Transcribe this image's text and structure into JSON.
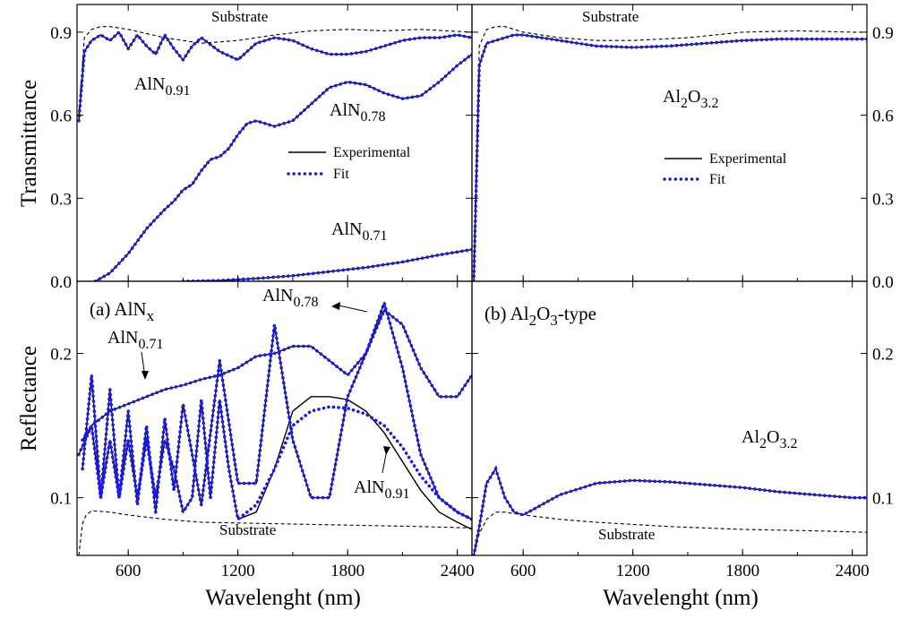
{
  "labels": {
    "ylabel_top": "Transmittance",
    "ylabel_bottom": "Reflectance",
    "xlabel_left": "Wavelenght (nm)",
    "xlabel_right": "Wavelenght (nm)",
    "panel_a": {
      "main": "(a) AlN",
      "sub": "x"
    },
    "panel_b": {
      "pre": "(b) Al",
      "sub1": "2",
      "mid": "O",
      "sub2": "3",
      "post": "-type"
    },
    "substrate": "Substrate",
    "aln091": {
      "main": "AlN",
      "sub": "0.91"
    },
    "aln078": {
      "main": "AlN",
      "sub": "0.78"
    },
    "aln071": {
      "main": "AlN",
      "sub": "0.71"
    },
    "al2o3": {
      "a": "Al",
      "s1": "2",
      "b": "O",
      "s2": "3.2"
    }
  },
  "legend": {
    "experimental": "Experimental",
    "fit": "Fit"
  },
  "colors": {
    "experimental": "#000000",
    "fit": "#1a1aee",
    "substrate": "#000000"
  },
  "ticks": {
    "x": [
      "600",
      "1200",
      "1800",
      "2400"
    ],
    "trans_y": [
      "0.0",
      "0.3",
      "0.6",
      "0.9"
    ],
    "refl_y": [
      "0.1",
      "0.2"
    ]
  },
  "chart_data": [
    {
      "panel": "transmittance-left",
      "type": "line",
      "ylabel": "Transmittance",
      "xlim": [
        320,
        2480
      ],
      "ylim": [
        0.0,
        1.0
      ],
      "series": [
        {
          "name": "Substrate",
          "style": "dashed",
          "x": [
            330,
            360,
            400,
            450,
            500,
            600,
            800,
            1000,
            1200,
            1400,
            1600,
            1800,
            2000,
            2200,
            2480
          ],
          "y": [
            0.6,
            0.88,
            0.91,
            0.92,
            0.92,
            0.91,
            0.88,
            0.86,
            0.87,
            0.89,
            0.905,
            0.91,
            0.905,
            0.91,
            0.9
          ]
        },
        {
          "name": "AlN0.91 Experimental",
          "x": [
            330,
            360,
            400,
            450,
            500,
            550,
            600,
            650,
            700,
            750,
            800,
            850,
            900,
            950,
            1000,
            1100,
            1200,
            1300,
            1400,
            1500,
            1600,
            1700,
            1800,
            1900,
            2000,
            2100,
            2200,
            2300,
            2400,
            2480
          ],
          "y": [
            0.58,
            0.83,
            0.87,
            0.89,
            0.87,
            0.9,
            0.84,
            0.89,
            0.85,
            0.82,
            0.89,
            0.84,
            0.8,
            0.85,
            0.88,
            0.83,
            0.8,
            0.86,
            0.88,
            0.87,
            0.84,
            0.82,
            0.82,
            0.83,
            0.85,
            0.87,
            0.88,
            0.88,
            0.89,
            0.88
          ]
        },
        {
          "name": "AlN0.91 Fit",
          "style": "dotted",
          "x": [
            330,
            360,
            400,
            450,
            500,
            550,
            600,
            650,
            700,
            750,
            800,
            850,
            900,
            950,
            1000,
            1100,
            1200,
            1300,
            1400,
            1500,
            1600,
            1700,
            1800,
            1900,
            2000,
            2100,
            2200,
            2300,
            2400,
            2480
          ],
          "y": [
            0.58,
            0.83,
            0.87,
            0.89,
            0.87,
            0.9,
            0.84,
            0.89,
            0.85,
            0.82,
            0.89,
            0.84,
            0.8,
            0.85,
            0.88,
            0.83,
            0.8,
            0.86,
            0.88,
            0.87,
            0.84,
            0.82,
            0.82,
            0.83,
            0.85,
            0.87,
            0.88,
            0.88,
            0.89,
            0.88
          ]
        },
        {
          "name": "AlN0.78 Experimental",
          "x": [
            420,
            500,
            600,
            700,
            800,
            850,
            900,
            950,
            1000,
            1050,
            1100,
            1150,
            1200,
            1250,
            1300,
            1400,
            1500,
            1600,
            1700,
            1800,
            1900,
            2000,
            2100,
            2200,
            2300,
            2400,
            2480
          ],
          "y": [
            0.0,
            0.03,
            0.1,
            0.19,
            0.26,
            0.29,
            0.33,
            0.35,
            0.4,
            0.44,
            0.45,
            0.48,
            0.53,
            0.57,
            0.58,
            0.56,
            0.58,
            0.64,
            0.7,
            0.72,
            0.71,
            0.68,
            0.66,
            0.67,
            0.72,
            0.78,
            0.82
          ]
        },
        {
          "name": "AlN0.78 Fit",
          "style": "dotted",
          "x": [
            420,
            500,
            600,
            700,
            800,
            850,
            900,
            950,
            1000,
            1050,
            1100,
            1150,
            1200,
            1250,
            1300,
            1400,
            1500,
            1600,
            1700,
            1800,
            1900,
            2000,
            2100,
            2200,
            2300,
            2400,
            2480
          ],
          "y": [
            0.0,
            0.03,
            0.1,
            0.19,
            0.26,
            0.29,
            0.33,
            0.35,
            0.4,
            0.44,
            0.45,
            0.48,
            0.53,
            0.57,
            0.58,
            0.56,
            0.58,
            0.64,
            0.7,
            0.72,
            0.71,
            0.68,
            0.66,
            0.67,
            0.72,
            0.78,
            0.82
          ]
        },
        {
          "name": "AlN0.71 Experimental",
          "x": [
            900,
            1100,
            1300,
            1500,
            1700,
            1900,
            2100,
            2300,
            2480
          ],
          "y": [
            0.0,
            0.003,
            0.01,
            0.02,
            0.035,
            0.05,
            0.07,
            0.095,
            0.115
          ]
        },
        {
          "name": "AlN0.71 Fit",
          "style": "dotted",
          "x": [
            900,
            1100,
            1300,
            1500,
            1700,
            1900,
            2100,
            2300,
            2480
          ],
          "y": [
            0.0,
            0.003,
            0.01,
            0.02,
            0.035,
            0.05,
            0.07,
            0.095,
            0.115
          ]
        }
      ]
    },
    {
      "panel": "transmittance-right",
      "type": "line",
      "ylabel": "Transmittance",
      "xlim": [
        320,
        2480
      ],
      "ylim": [
        0.0,
        1.0
      ],
      "series": [
        {
          "name": "Substrate",
          "style": "dashed",
          "x": [
            330,
            360,
            400,
            450,
            500,
            600,
            800,
            1000,
            1200,
            1500,
            1800,
            2100,
            2400,
            2480
          ],
          "y": [
            0.05,
            0.85,
            0.91,
            0.92,
            0.92,
            0.9,
            0.88,
            0.87,
            0.87,
            0.88,
            0.9,
            0.905,
            0.9,
            0.9
          ]
        },
        {
          "name": "Al2O3.2 Experimental",
          "x": [
            330,
            360,
            400,
            450,
            500,
            550,
            600,
            700,
            800,
            1000,
            1200,
            1400,
            1600,
            1800,
            2000,
            2200,
            2400,
            2480
          ],
          "y": [
            0.0,
            0.78,
            0.86,
            0.87,
            0.88,
            0.89,
            0.89,
            0.88,
            0.87,
            0.85,
            0.845,
            0.85,
            0.86,
            0.87,
            0.875,
            0.875,
            0.875,
            0.875
          ]
        },
        {
          "name": "Al2O3.2 Fit",
          "style": "dotted",
          "x": [
            330,
            360,
            400,
            450,
            500,
            550,
            600,
            700,
            800,
            1000,
            1200,
            1400,
            1600,
            1800,
            2000,
            2200,
            2400,
            2480
          ],
          "y": [
            0.0,
            0.78,
            0.86,
            0.87,
            0.88,
            0.89,
            0.89,
            0.88,
            0.87,
            0.85,
            0.845,
            0.85,
            0.86,
            0.87,
            0.875,
            0.875,
            0.875,
            0.875
          ]
        }
      ]
    },
    {
      "panel": "reflectance-left",
      "type": "line",
      "ylabel": "Reflectance",
      "xlabel": "Wavelenght (nm)",
      "xlim": [
        320,
        2480
      ],
      "ylim": [
        0.06,
        0.25
      ],
      "series": [
        {
          "name": "Substrate",
          "style": "dashed",
          "x": [
            330,
            350,
            370,
            400,
            500,
            600,
            800,
            1000,
            1400,
            1800,
            2200,
            2480
          ],
          "y": [
            0.06,
            0.082,
            0.088,
            0.091,
            0.09,
            0.088,
            0.085,
            0.083,
            0.082,
            0.081,
            0.08,
            0.079
          ]
        },
        {
          "name": "AlN0.71 Experimental",
          "x": [
            330,
            400,
            500,
            600,
            700,
            800,
            900,
            1000,
            1100,
            1200,
            1300,
            1400,
            1500,
            1600,
            1700,
            1800,
            1900,
            2000,
            2100,
            2200,
            2300,
            2400,
            2480
          ],
          "y": [
            0.13,
            0.15,
            0.16,
            0.165,
            0.17,
            0.175,
            0.178,
            0.182,
            0.185,
            0.19,
            0.198,
            0.2,
            0.205,
            0.205,
            0.195,
            0.185,
            0.2,
            0.23,
            0.22,
            0.19,
            0.17,
            0.17,
            0.185
          ]
        },
        {
          "name": "AlN0.71 Fit",
          "style": "dotted",
          "x": [
            330,
            400,
            500,
            600,
            700,
            800,
            900,
            1000,
            1100,
            1200,
            1300,
            1400,
            1500,
            1600,
            1700,
            1800,
            1900,
            2000,
            2100,
            2200,
            2300,
            2400,
            2480
          ],
          "y": [
            0.13,
            0.15,
            0.16,
            0.165,
            0.17,
            0.175,
            0.178,
            0.182,
            0.185,
            0.19,
            0.198,
            0.2,
            0.205,
            0.205,
            0.195,
            0.185,
            0.2,
            0.23,
            0.22,
            0.19,
            0.17,
            0.17,
            0.185
          ]
        },
        {
          "name": "AlN0.78 Experimental",
          "x": [
            350,
            400,
            450,
            500,
            550,
            600,
            650,
            700,
            750,
            800,
            850,
            900,
            1000,
            1100,
            1200,
            1300,
            1400,
            1500,
            1600,
            1700,
            1800,
            1900,
            2000,
            2100,
            2200,
            2300,
            2400,
            2480
          ],
          "y": [
            0.12,
            0.185,
            0.1,
            0.175,
            0.1,
            0.16,
            0.095,
            0.15,
            0.09,
            0.155,
            0.105,
            0.165,
            0.095,
            0.195,
            0.11,
            0.11,
            0.22,
            0.14,
            0.1,
            0.1,
            0.17,
            0.2,
            0.235,
            0.19,
            0.13,
            0.1,
            0.09,
            0.085
          ]
        },
        {
          "name": "AlN0.78 Fit",
          "style": "dotted",
          "x": [
            350,
            400,
            450,
            500,
            550,
            600,
            650,
            700,
            750,
            800,
            850,
            900,
            1000,
            1100,
            1200,
            1300,
            1400,
            1500,
            1600,
            1700,
            1800,
            1900,
            2000,
            2100,
            2200,
            2300,
            2400,
            2480
          ],
          "y": [
            0.12,
            0.185,
            0.1,
            0.175,
            0.1,
            0.16,
            0.095,
            0.15,
            0.09,
            0.155,
            0.105,
            0.165,
            0.095,
            0.195,
            0.11,
            0.11,
            0.22,
            0.14,
            0.1,
            0.1,
            0.17,
            0.2,
            0.235,
            0.19,
            0.13,
            0.1,
            0.09,
            0.085
          ]
        },
        {
          "name": "AlN0.91 Experimental",
          "x": [
            350,
            400,
            450,
            500,
            550,
            600,
            650,
            700,
            750,
            800,
            850,
            900,
            950,
            1000,
            1050,
            1100,
            1150,
            1200,
            1300,
            1400,
            1500,
            1600,
            1700,
            1800,
            1900,
            2000,
            2100,
            2200,
            2300,
            2400,
            2480
          ],
          "y": [
            0.14,
            0.15,
            0.1,
            0.14,
            0.1,
            0.14,
            0.1,
            0.14,
            0.1,
            0.14,
            0.12,
            0.09,
            0.1,
            0.168,
            0.1,
            0.168,
            0.12,
            0.085,
            0.09,
            0.12,
            0.16,
            0.17,
            0.17,
            0.168,
            0.16,
            0.145,
            0.125,
            0.105,
            0.09,
            0.083,
            0.078
          ]
        },
        {
          "name": "AlN0.91 Fit",
          "style": "dotted",
          "x": [
            350,
            400,
            450,
            500,
            550,
            600,
            650,
            700,
            750,
            800,
            850,
            900,
            950,
            1000,
            1050,
            1100,
            1150,
            1200,
            1300,
            1400,
            1500,
            1600,
            1700,
            1800,
            1900,
            2000,
            2100,
            2200,
            2300,
            2400,
            2480
          ],
          "y": [
            0.14,
            0.15,
            0.1,
            0.14,
            0.1,
            0.14,
            0.1,
            0.14,
            0.1,
            0.14,
            0.12,
            0.09,
            0.1,
            0.168,
            0.1,
            0.168,
            0.12,
            0.085,
            0.095,
            0.12,
            0.15,
            0.16,
            0.163,
            0.162,
            0.158,
            0.15,
            0.135,
            0.115,
            0.1,
            0.09,
            0.085
          ]
        }
      ]
    },
    {
      "panel": "reflectance-right",
      "type": "line",
      "ylabel": "Reflectance",
      "xlabel": "Wavelenght (nm)",
      "xlim": [
        320,
        2480
      ],
      "ylim": [
        0.06,
        0.25
      ],
      "series": [
        {
          "name": "Substrate",
          "style": "dashed",
          "x": [
            330,
            360,
            400,
            450,
            500,
            550,
            600,
            800,
            1000,
            1400,
            1800,
            2200,
            2480
          ],
          "y": [
            0.06,
            0.075,
            0.085,
            0.09,
            0.09,
            0.089,
            0.088,
            0.085,
            0.083,
            0.08,
            0.078,
            0.077,
            0.076
          ]
        },
        {
          "name": "Al2O3.2 Experimental",
          "x": [
            330,
            360,
            400,
            450,
            500,
            550,
            600,
            700,
            800,
            1000,
            1200,
            1400,
            1600,
            1800,
            2000,
            2200,
            2400,
            2480
          ],
          "y": [
            0.06,
            0.08,
            0.11,
            0.12,
            0.1,
            0.09,
            0.088,
            0.095,
            0.102,
            0.11,
            0.112,
            0.111,
            0.109,
            0.107,
            0.104,
            0.102,
            0.1,
            0.1
          ]
        },
        {
          "name": "Al2O3.2 Fit",
          "style": "dotted",
          "x": [
            330,
            360,
            400,
            450,
            500,
            550,
            600,
            700,
            800,
            1000,
            1200,
            1400,
            1600,
            1800,
            2000,
            2200,
            2400,
            2480
          ],
          "y": [
            0.06,
            0.08,
            0.11,
            0.12,
            0.1,
            0.09,
            0.088,
            0.095,
            0.102,
            0.11,
            0.112,
            0.111,
            0.109,
            0.107,
            0.104,
            0.102,
            0.1,
            0.1
          ]
        }
      ]
    }
  ]
}
